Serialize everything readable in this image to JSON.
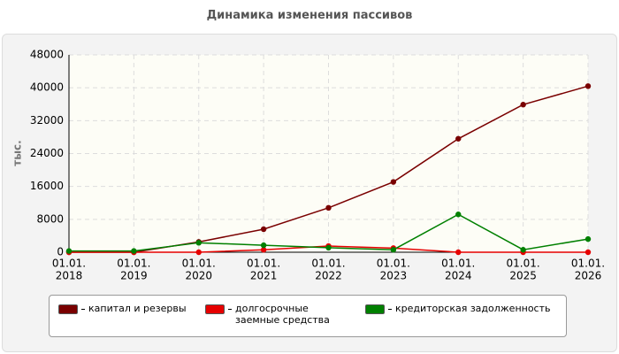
{
  "chart_data": {
    "type": "line",
    "title": "Динамика изменения пассивов",
    "y_label": "тыс.",
    "categories": [
      [
        "01.01.",
        "2018"
      ],
      [
        "01.01.",
        "2019"
      ],
      [
        "01.01.",
        "2020"
      ],
      [
        "01.01.",
        "2021"
      ],
      [
        "01.01.",
        "2022"
      ],
      [
        "01.01.",
        "2023"
      ],
      [
        "01.01.",
        "2024"
      ],
      [
        "01.01.",
        "2025"
      ],
      [
        "01.01.",
        "2026"
      ]
    ],
    "series": [
      {
        "name": "капитал и резервы",
        "color": "#7a0000",
        "values": [
          0,
          0,
          2500,
          5600,
          10800,
          17100,
          27600,
          35900,
          40400
        ]
      },
      {
        "name": "долгосрочные заемные средства",
        "color": "#e60000",
        "values": [
          0,
          0,
          0,
          600,
          1500,
          1000,
          0,
          0,
          0
        ]
      },
      {
        "name": "кредиторская задолженность",
        "color": "#008000",
        "values": [
          300,
          300,
          2300,
          1700,
          1100,
          600,
          9200,
          600,
          3200
        ]
      }
    ],
    "ylim": [
      0,
      48000
    ],
    "yticks": [
      0,
      8000,
      16000,
      24000,
      32000,
      40000,
      48000
    ],
    "grid": true
  }
}
